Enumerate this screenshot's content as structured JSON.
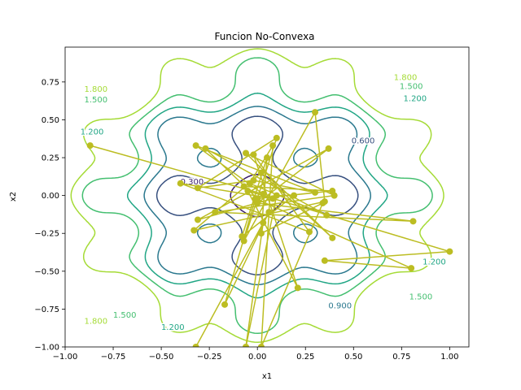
{
  "chart_data": {
    "type": "contour",
    "title": "Funcion No-Convexa",
    "xlabel": "x1",
    "ylabel": "x2",
    "xlim": [
      -1.0,
      1.1
    ],
    "ylim": [
      -1.0,
      0.98
    ],
    "xticks": [
      "−1.00",
      "−0.75",
      "−0.50",
      "−0.25",
      "0.00",
      "0.25",
      "0.50",
      "0.75",
      "1.00"
    ],
    "yticks": [
      "−1.00",
      "−0.75",
      "−0.50",
      "−0.25",
      "0.00",
      "0.25",
      "0.50",
      "0.75"
    ],
    "grid": false,
    "legend": "none",
    "contour_levels": [
      {
        "level": 0.3,
        "label": "0.300",
        "color": "#3b1f6e"
      },
      {
        "level": 0.6,
        "label": "0.600",
        "color": "#37507f"
      },
      {
        "level": 0.9,
        "label": "0.900",
        "color": "#2a788e"
      },
      {
        "level": 1.2,
        "label": "1.200",
        "color": "#21a685"
      },
      {
        "level": 1.5,
        "label": "1.500",
        "color": "#44bf70"
      },
      {
        "level": 1.8,
        "label": "1.800",
        "color": "#a5db36"
      }
    ],
    "contour_label_marks": [
      {
        "x": -0.34,
        "y": 0.09,
        "label": "0.300"
      },
      {
        "x": 0.55,
        "y": 0.36,
        "label": "0.600"
      },
      {
        "x": 0.43,
        "y": -0.73,
        "label": "0.900"
      },
      {
        "x": -0.86,
        "y": 0.42,
        "label": "1.200"
      },
      {
        "x": 0.82,
        "y": 0.64,
        "label": "1.200"
      },
      {
        "x": 0.92,
        "y": -0.44,
        "label": "1.200"
      },
      {
        "x": -0.44,
        "y": -0.87,
        "label": "1.200"
      },
      {
        "x": -0.84,
        "y": 0.63,
        "label": "1.500"
      },
      {
        "x": 0.8,
        "y": 0.72,
        "label": "1.500"
      },
      {
        "x": -0.69,
        "y": -0.79,
        "label": "1.500"
      },
      {
        "x": 0.85,
        "y": -0.67,
        "label": "1.500"
      },
      {
        "x": -0.84,
        "y": 0.7,
        "label": "1.800"
      },
      {
        "x": 0.77,
        "y": 0.78,
        "label": "1.800"
      },
      {
        "x": -0.84,
        "y": -0.83,
        "label": "1.800"
      }
    ],
    "path_color": "#bcbd22",
    "path": [
      {
        "x": -0.87,
        "y": 0.33
      },
      {
        "x": 0.03,
        "y": 0.01
      },
      {
        "x": -0.32,
        "y": 0.33
      },
      {
        "x": 0.3,
        "y": 0.02
      },
      {
        "x": -0.02,
        "y": 0.1
      },
      {
        "x": -0.31,
        "y": 0.05
      },
      {
        "x": 0.1,
        "y": 0.38
      },
      {
        "x": -0.07,
        "y": -0.3
      },
      {
        "x": 0.3,
        "y": 0.55
      },
      {
        "x": 0.35,
        "y": -0.04
      },
      {
        "x": -0.33,
        "y": -0.23
      },
      {
        "x": 0.02,
        "y": 0.15
      },
      {
        "x": 0.39,
        "y": -0.28
      },
      {
        "x": -0.06,
        "y": 0.28
      },
      {
        "x": 0.4,
        "y": 0.0
      },
      {
        "x": -0.22,
        "y": -0.11
      },
      {
        "x": 0.81,
        "y": -0.17
      },
      {
        "x": 0.0,
        "y": -0.05
      },
      {
        "x": 0.37,
        "y": 0.31
      },
      {
        "x": -0.31,
        "y": -0.16
      },
      {
        "x": 0.08,
        "y": -0.02
      },
      {
        "x": -0.4,
        "y": 0.08
      },
      {
        "x": 0.27,
        "y": -0.24
      },
      {
        "x": -0.02,
        "y": 0.27
      },
      {
        "x": 0.21,
        "y": -0.61
      },
      {
        "x": -0.05,
        "y": 0.03
      },
      {
        "x": 1.0,
        "y": -0.37
      },
      {
        "x": 0.35,
        "y": -0.43
      },
      {
        "x": 0.8,
        "y": -0.48
      },
      {
        "x": -0.01,
        "y": -0.02
      },
      {
        "x": -0.17,
        "y": -0.72
      },
      {
        "x": 0.06,
        "y": -0.11
      },
      {
        "x": -0.32,
        "y": -1.0
      },
      {
        "x": 0.03,
        "y": -0.18
      },
      {
        "x": -0.06,
        "y": -1.0
      },
      {
        "x": 0.1,
        "y": 0.0
      },
      {
        "x": 0.19,
        "y": 0.0
      },
      {
        "x": -0.08,
        "y": -0.27
      },
      {
        "x": 0.05,
        "y": 0.25
      },
      {
        "x": 0.02,
        "y": -0.25
      },
      {
        "x": 0.34,
        "y": -0.05
      },
      {
        "x": 0.02,
        "y": -1.0
      },
      {
        "x": 0.08,
        "y": 0.33
      },
      {
        "x": -0.04,
        "y": 0.08
      },
      {
        "x": 0.36,
        "y": -0.13
      },
      {
        "x": -0.27,
        "y": 0.31
      },
      {
        "x": 0.0,
        "y": -0.02
      },
      {
        "x": 0.39,
        "y": 0.03
      },
      {
        "x": -0.07,
        "y": 0.06
      }
    ]
  }
}
